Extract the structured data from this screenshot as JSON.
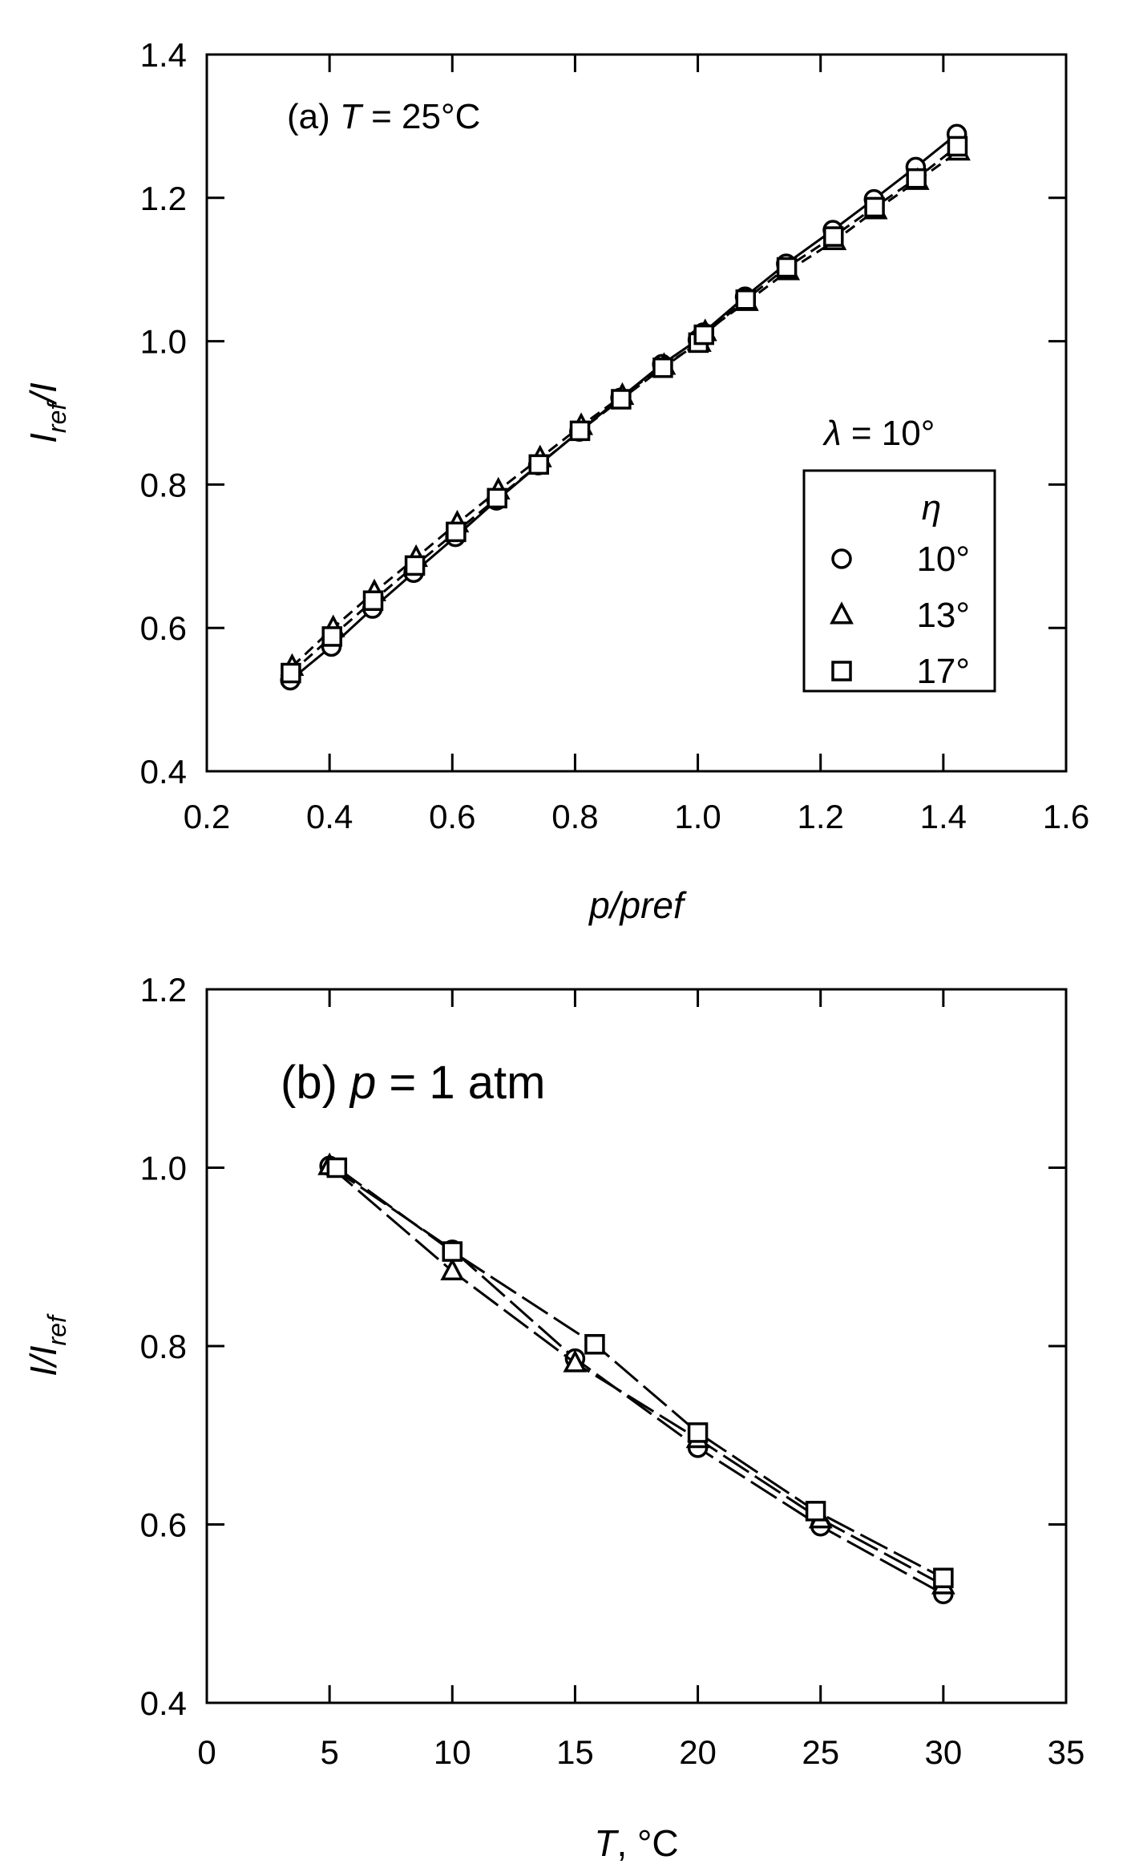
{
  "chart_data": [
    {
      "id": "a",
      "type": "line",
      "annotation": {
        "prefix": "(a) ",
        "var": "T",
        "rest": " = 25°C"
      },
      "xlabel": "p/pref",
      "ylabel": {
        "main": "I",
        "sub": "ref",
        "tail": "/I"
      },
      "xlim": [
        0.2,
        1.6
      ],
      "ylim": [
        0.4,
        1.4
      ],
      "xticks": [
        "0.2",
        "0.4",
        "0.6",
        "0.8",
        "1.0",
        "1.2",
        "1.4",
        "1.6"
      ],
      "yticks": [
        "0.4",
        "0.6",
        "0.8",
        "1.0",
        "1.2",
        "1.4"
      ],
      "grid": false,
      "legend": {
        "placement": "right",
        "header": {
          "symbol": "λ",
          "rest": " = 10°"
        },
        "title": "η",
        "entries": [
          {
            "marker": "circle",
            "label": "10°"
          },
          {
            "marker": "triangle",
            "label": "13°"
          },
          {
            "marker": "square",
            "label": "17°"
          }
        ]
      },
      "series": [
        {
          "marker": "circle",
          "line": "solid",
          "x": [
            0.336,
            0.403,
            0.47,
            0.537,
            0.605,
            0.672,
            0.74,
            0.807,
            0.874,
            0.942,
            1.0,
            1.009,
            1.077,
            1.144,
            1.22,
            1.287,
            1.355,
            1.422
          ],
          "y": [
            0.527,
            0.574,
            0.627,
            0.677,
            0.727,
            0.778,
            0.827,
            0.874,
            0.921,
            0.968,
            1.002,
            1.012,
            1.062,
            1.108,
            1.155,
            1.198,
            1.243,
            1.289
          ]
        },
        {
          "marker": "triangle",
          "line": "dashed",
          "x": [
            0.339,
            0.406,
            0.473,
            0.541,
            0.608,
            0.675,
            0.743,
            0.81,
            0.877,
            0.945,
            1.003,
            1.012,
            1.08,
            1.147,
            1.223,
            1.29,
            1.358,
            1.425
          ],
          "y": [
            0.546,
            0.6,
            0.65,
            0.698,
            0.746,
            0.792,
            0.837,
            0.882,
            0.924,
            0.966,
            0.998,
            1.013,
            1.055,
            1.098,
            1.14,
            1.183,
            1.224,
            1.265
          ]
        },
        {
          "marker": "square",
          "line": "dashed",
          "x": [
            0.337,
            0.404,
            0.471,
            0.539,
            0.606,
            0.673,
            0.741,
            0.808,
            0.875,
            0.943,
            1.001,
            1.01,
            1.078,
            1.145,
            1.221,
            1.288,
            1.356,
            1.423
          ],
          "y": [
            0.537,
            0.588,
            0.638,
            0.687,
            0.734,
            0.781,
            0.828,
            0.875,
            0.919,
            0.963,
            0.998,
            1.009,
            1.058,
            1.103,
            1.146,
            1.187,
            1.227,
            1.272
          ]
        }
      ]
    },
    {
      "id": "b",
      "type": "line",
      "annotation": {
        "prefix": "(b) ",
        "var": "p",
        "rest": " = 1 atm"
      },
      "xlabel": {
        "var": "T",
        "rest": ", °C"
      },
      "ylabel": {
        "main": "I/I",
        "sub": "ref",
        "tail": ""
      },
      "xlim": [
        0,
        35
      ],
      "ylim": [
        0.4,
        1.2
      ],
      "xticks": [
        "0",
        "5",
        "10",
        "15",
        "20",
        "25",
        "30",
        "35"
      ],
      "yticks": [
        "0.4",
        "0.6",
        "0.8",
        "1.0",
        "1.2"
      ],
      "grid": false,
      "series": [
        {
          "marker": "circle",
          "line": "dashed",
          "x": [
            5,
            10,
            15,
            20,
            25,
            30
          ],
          "y": [
            1.002,
            0.908,
            0.786,
            0.686,
            0.598,
            0.522
          ]
        },
        {
          "marker": "triangle",
          "line": "dashed",
          "x": [
            5,
            10,
            15,
            20,
            25,
            30
          ],
          "y": [
            1.002,
            0.884,
            0.781,
            0.696,
            0.606,
            0.532
          ]
        },
        {
          "marker": "square",
          "line": "dashed",
          "x": [
            5.3,
            10,
            15.8,
            20,
            24.8,
            30
          ],
          "y": [
            1.0,
            0.906,
            0.802,
            0.703,
            0.615,
            0.54
          ]
        }
      ]
    }
  ]
}
